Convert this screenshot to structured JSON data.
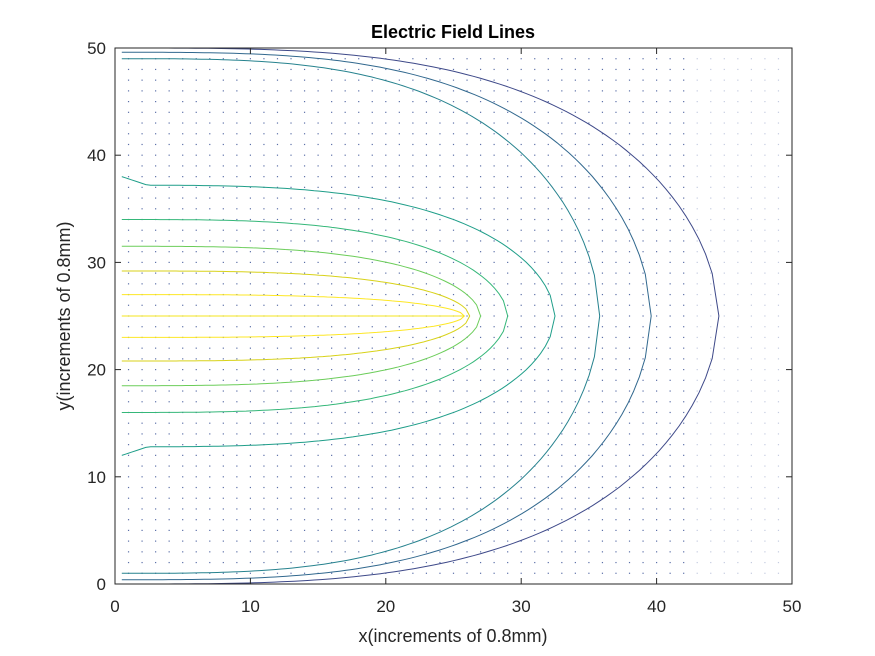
{
  "chart_data": {
    "type": "contour",
    "title": "Electric Field Lines",
    "xlabel": "x(increments of 0.8mm)",
    "ylabel": "y(increments of 0.8mm)",
    "xlim": [
      0,
      50
    ],
    "ylim": [
      0,
      50
    ],
    "xticks": [
      0,
      10,
      20,
      30,
      40,
      50
    ],
    "yticks": [
      0,
      10,
      20,
      30,
      40,
      50
    ],
    "grid": false,
    "box": true,
    "quiver_overlay": true,
    "center_line": {
      "y": 25,
      "x_start": 0.5,
      "x_end": 25.8,
      "color": "#f4e61e"
    },
    "contours": [
      {
        "level": 1,
        "color": "#fde725",
        "x_extent": 25.8,
        "upper_y": 27.0,
        "lower_y": 23.0
      },
      {
        "level": 2,
        "color": "#d8d219",
        "x_extent": 26.2,
        "upper_y": 29.2,
        "lower_y": 20.8
      },
      {
        "level": 3,
        "color": "#6ccd5a",
        "x_extent": 27.0,
        "upper_y": 31.5,
        "lower_y": 18.5
      },
      {
        "level": 4,
        "color": "#35b779",
        "x_extent": 29.0,
        "upper_y": 34.0,
        "lower_y": 16.0
      },
      {
        "level": 5,
        "color": "#1f9e89",
        "x_extent": 32.5,
        "upper_y": 37.2,
        "lower_y": 12.8,
        "left_edge_upper": 38.0,
        "left_edge_lower": 12.0
      },
      {
        "level": 6,
        "color": "#26828e",
        "x_extent": 35.8,
        "upper_y": 49.0,
        "lower_y": 1.0
      },
      {
        "level": 7,
        "color": "#31688e",
        "x_extent": 39.6,
        "upper_y": 49.6,
        "lower_y": 0.4
      },
      {
        "level": 8,
        "color": "#3e4989",
        "x_extent": 44.6,
        "upper_y": 50.0,
        "lower_y": 0.0
      }
    ]
  }
}
